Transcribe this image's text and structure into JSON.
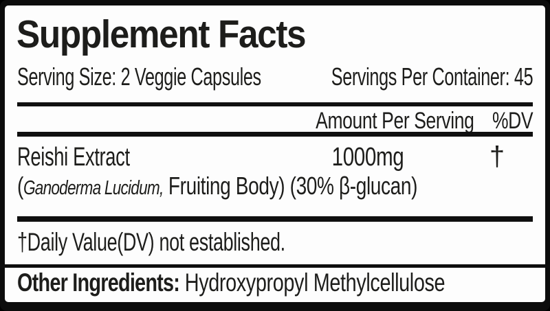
{
  "label": {
    "title": "Supplement Facts",
    "serving_size": "Serving Size: 2 Veggie Capsules",
    "servings_per_container": "Servings Per Container: 45",
    "columns": {
      "amount": "Amount Per Serving",
      "dv": "%DV"
    },
    "ingredient": {
      "name": "Reishi Extract",
      "amount": "1000mg",
      "dv": "†",
      "detail_paren": "(",
      "detail_latin": "Ganoderma Lucidum,",
      "detail_rest": " Fruiting Body) (30% β-glucan)"
    },
    "footnote": "†Daily Value(DV) not established.",
    "other_ingredients": {
      "label": "Other Ingredients:",
      "value": " Hydroxypropyl Methylcellulose"
    },
    "colors": {
      "text": "#1d1d1b",
      "background": "#fdfdfd",
      "border": "#0c0c0c"
    }
  }
}
